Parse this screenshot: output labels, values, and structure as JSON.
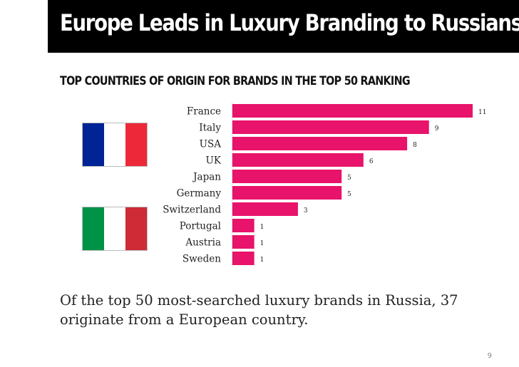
{
  "header": {
    "title": "Europe Leads in Luxury Branding to Russians",
    "title_dot": ".",
    "accent_color": "#e4185f"
  },
  "chart_data": {
    "type": "bar",
    "orientation": "horizontal",
    "title": "TOP COUNTRIES OF ORIGIN FOR BRANDS IN THE TOP 50 RANKING",
    "categories": [
      "France",
      "Italy",
      "USA",
      "UK",
      "Japan",
      "Germany",
      "Switzerland",
      "Portugal",
      "Austria",
      "Sweden"
    ],
    "values": [
      11,
      9,
      8,
      6,
      5,
      5,
      3,
      1,
      1,
      1
    ],
    "data_labels": [
      "11",
      "9",
      "8",
      "6",
      "5",
      "5",
      "3",
      "1",
      "1",
      "1"
    ],
    "xlim": [
      0,
      11
    ],
    "bar_color": "#e8136a",
    "grid": false,
    "legend": "none"
  },
  "flags": {
    "france": {
      "colors": [
        "#002395",
        "#ffffff",
        "#ed2939"
      ]
    },
    "italy": {
      "colors": [
        "#009246",
        "#ffffff",
        "#ce2b37"
      ]
    }
  },
  "footer": {
    "text": "Of the top 50 most-searched luxury brands in Russia, 37 originate from a European country."
  },
  "page_number": "9"
}
